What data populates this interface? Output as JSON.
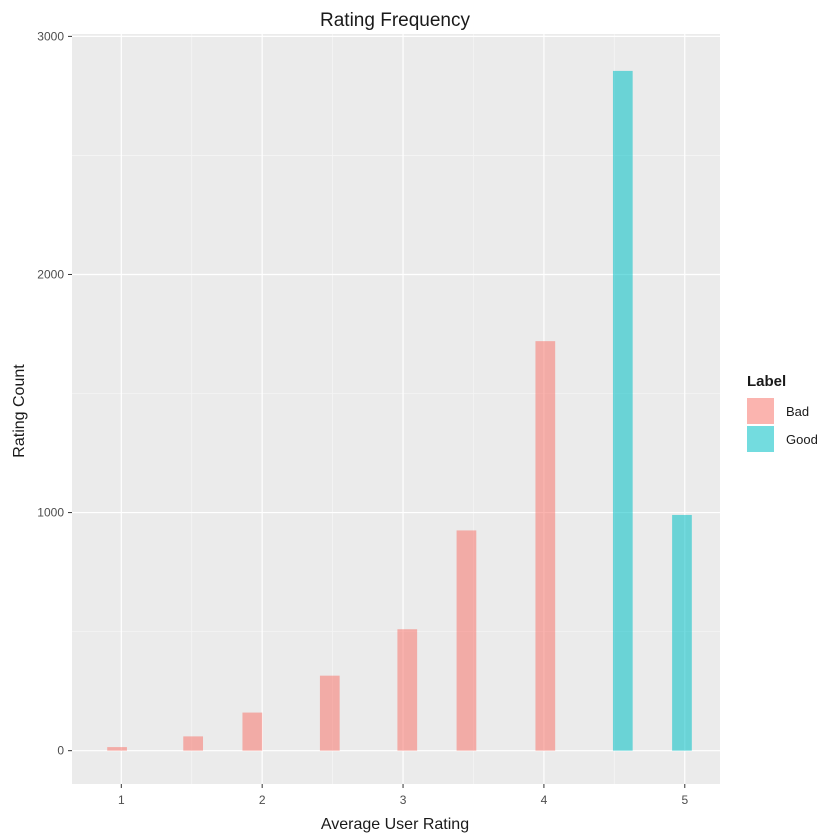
{
  "chart_data": {
    "type": "bar",
    "title": "Rating Frequency",
    "xlabel": "Average User Rating",
    "ylabel": "Rating Count",
    "xlim": [
      0.65,
      5.25
    ],
    "ylim": [
      -140,
      3010
    ],
    "xticks": [
      1,
      2,
      3,
      4,
      5
    ],
    "yticks": [
      0,
      1000,
      2000,
      3000
    ],
    "bar_width": 0.14,
    "grid": true,
    "legend": {
      "title": "Label",
      "position": "right"
    },
    "series": [
      {
        "name": "Bad",
        "color": "#F8766D",
        "opacity": 0.55,
        "points": [
          {
            "x": 0.97,
            "y": 15
          },
          {
            "x": 1.51,
            "y": 60
          },
          {
            "x": 1.93,
            "y": 160
          },
          {
            "x": 2.48,
            "y": 315
          },
          {
            "x": 3.03,
            "y": 510
          },
          {
            "x": 3.45,
            "y": 925
          },
          {
            "x": 4.01,
            "y": 1720
          }
        ]
      },
      {
        "name": "Good",
        "color": "#00BFC4",
        "opacity": 0.55,
        "points": [
          {
            "x": 4.56,
            "y": 2855
          },
          {
            "x": 4.98,
            "y": 990
          }
        ]
      }
    ]
  },
  "colors": {
    "panel": "#EBEBEB",
    "grid_major": "#FFFFFF",
    "grid_minor": "#F5F5F5"
  }
}
